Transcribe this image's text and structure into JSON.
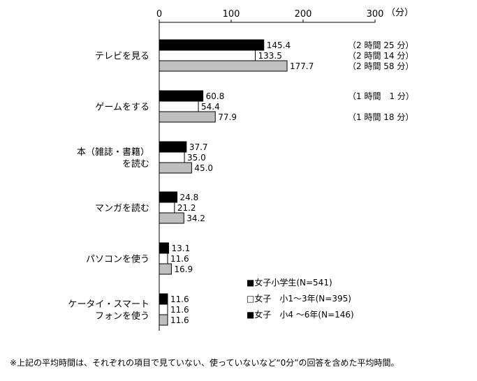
{
  "chart_data": {
    "type": "bar",
    "orientation": "horizontal",
    "unit": "（分）",
    "xlim": [
      0,
      300
    ],
    "xticks": [
      0,
      100,
      200,
      300
    ],
    "categories": [
      [
        "テレビを見る"
      ],
      [
        "ゲームをする"
      ],
      [
        "本（雑誌・書籍）",
        "を読む"
      ],
      [
        "マンガを読む"
      ],
      [
        "パソコンを使う"
      ],
      [
        "ケータイ・スマート",
        "フォンを使う"
      ]
    ],
    "series": [
      {
        "name": "■女子小学生(N=541)",
        "values": [
          145.4,
          60.8,
          37.7,
          24.8,
          13.1,
          11.6
        ],
        "color": "#000000"
      },
      {
        "name": "□女子　小1～3年(N=395)",
        "values": [
          133.5,
          54.4,
          35.0,
          21.2,
          11.6,
          11.6
        ],
        "color": "#ffffff"
      },
      {
        "name": "■女子　小4 ～6年(N=146)",
        "values": [
          177.7,
          77.9,
          45.0,
          34.2,
          16.9,
          11.6
        ],
        "color": "#bfbfbf"
      }
    ],
    "value_labels": [
      [
        "145.4",
        "60.8",
        "37.7",
        "24.8",
        "13.1",
        "11.6"
      ],
      [
        "133.5",
        "54.4",
        "35.0",
        "21.2",
        "11.6",
        "11.6"
      ],
      [
        "177.7",
        "77.9",
        "45.0",
        "34.2",
        "16.9",
        "11.6"
      ]
    ],
    "time_annotations": [
      [
        "（2 時間 25 分）",
        "（2 時間 14 分）",
        "（2 時間 58 分）"
      ],
      [
        "（1 時間　1 分）",
        "",
        "（1 時間 18 分）"
      ]
    ]
  },
  "footnote": "※上記の平均時間は、それぞれの項目で見ていない、使っていないなど“0分”の回答を含めた平均時間。"
}
